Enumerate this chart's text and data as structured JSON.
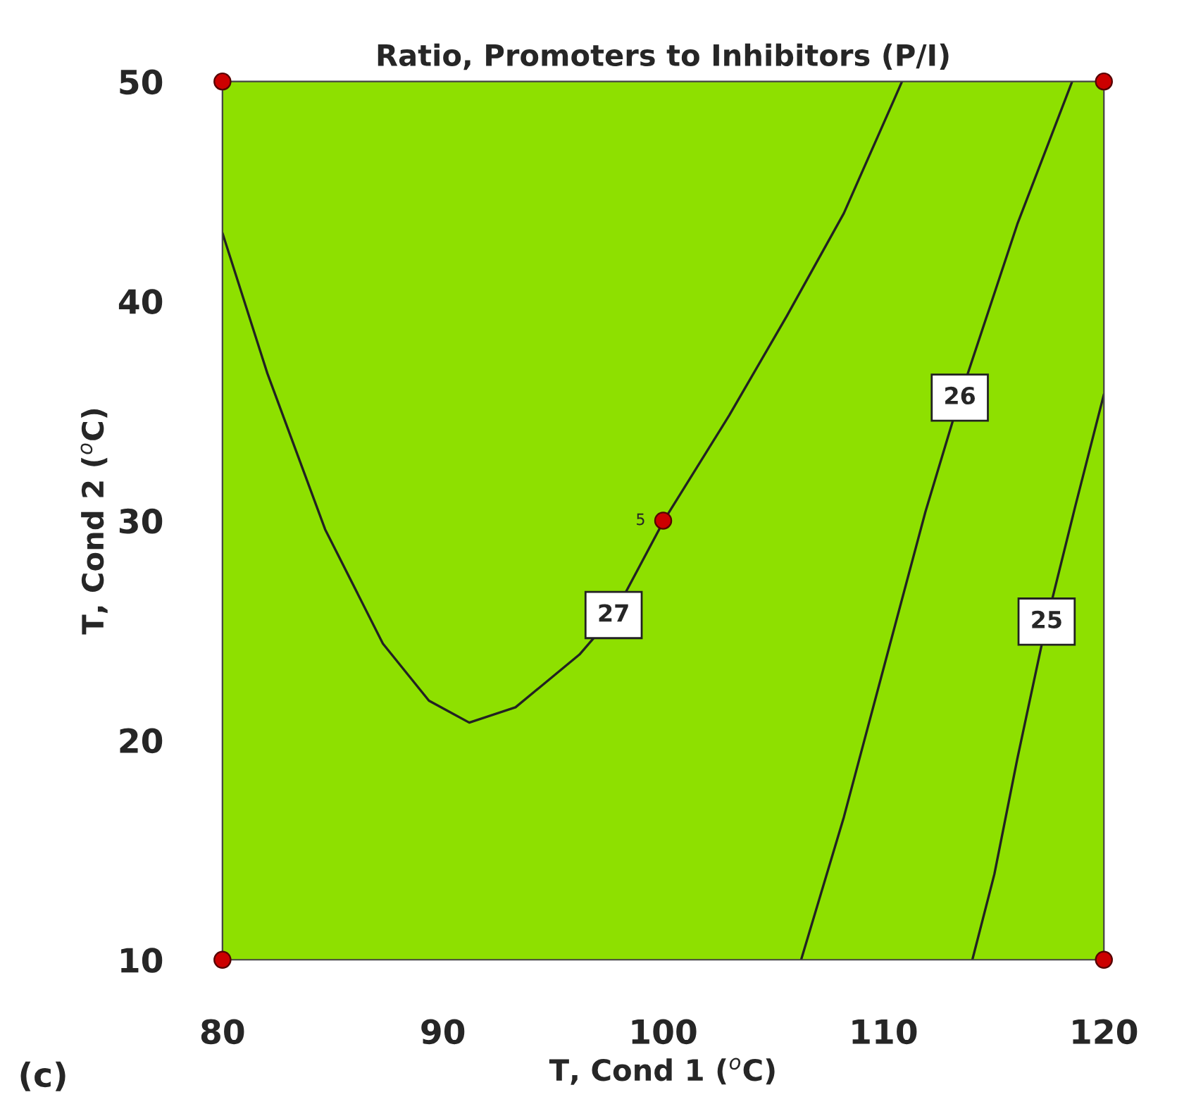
{
  "chart_data": {
    "type": "line",
    "title": "Ratio, Promoters to Inhibitors (P/I)",
    "xlabel": "T, Cond 1 ($^{o}$C)",
    "ylabel": "T, Cond 2 ($^{o}$C)",
    "xlim": [
      80,
      120
    ],
    "ylim": [
      10,
      50
    ],
    "xticks": [
      80,
      90,
      100,
      110,
      120
    ],
    "yticks": [
      10,
      20,
      30,
      40,
      50
    ],
    "grid": false,
    "legend": false,
    "line_style": "solid",
    "series": [
      {
        "name": "27",
        "color": "#222222",
        "marker": "none",
        "x": [
          110.84,
          108.2,
          105.6,
          103.0,
          100.03,
          97.75,
          96.2,
          93.3,
          91.2,
          89.37,
          87.28,
          84.66,
          82.04,
          80
        ],
        "values": [
          50,
          44.0,
          39.3,
          34.8,
          30.0,
          25.7,
          23.9,
          21.5,
          20.8,
          21.8,
          24.4,
          29.6,
          36.7,
          43.1
        ]
      },
      {
        "name": "26",
        "color": "#222222",
        "marker": "none",
        "x": [
          118.56,
          116.07,
          113.46,
          111.9,
          110.3,
          108.2,
          106.26
        ],
        "values": [
          50,
          43.5,
          35.6,
          30.4,
          24.4,
          16.5,
          10
        ]
      },
      {
        "name": "25",
        "color": "#222222",
        "marker": "none",
        "x": [
          120,
          118.7,
          117.4,
          116.07,
          115.03,
          114.03
        ],
        "values": [
          35.75,
          30.65,
          25.4,
          19.15,
          13.9,
          10
        ]
      },
      {
        "type": "scatter",
        "color": "#cc0000",
        "marker": "circle",
        "x": [
          80,
          120,
          100,
          80,
          120
        ],
        "values": [
          50,
          50,
          30,
          10,
          10
        ]
      }
    ],
    "annotations": [
      {
        "text": "5",
        "x": 100,
        "y": 30
      },
      "(c)"
    ]
  }
}
